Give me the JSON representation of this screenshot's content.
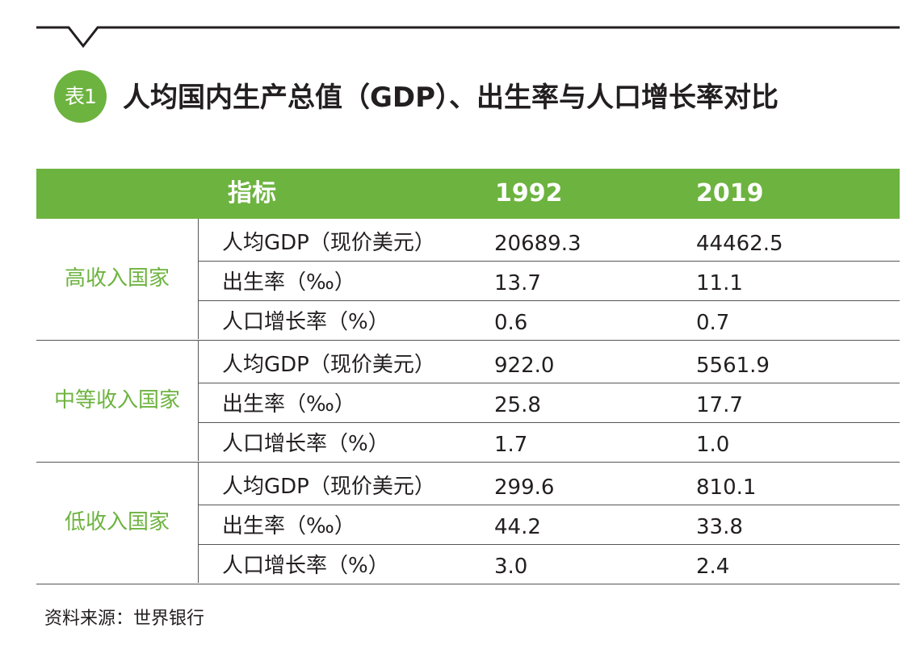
{
  "table_number": "表1",
  "title": "人均国内生产总值（GDP）、出生率与人口增长率对比",
  "header": {
    "indicator": "指标",
    "year1": "1992",
    "year2": "2019"
  },
  "groups": [
    {
      "name": "高收入国家",
      "rows": [
        {
          "indicator": "人均GDP（现价美元）",
          "y1992": "20689.3",
          "y2019": "44462.5"
        },
        {
          "indicator": "出生率（‰）",
          "y1992": "13.7",
          "y2019": "11.1"
        },
        {
          "indicator": "人口增长率（%）",
          "y1992": "0.6",
          "y2019": "0.7"
        }
      ]
    },
    {
      "name": "中等收入国家",
      "rows": [
        {
          "indicator": "人均GDP（现价美元）",
          "y1992": "922.0",
          "y2019": "5561.9"
        },
        {
          "indicator": "出生率（‰）",
          "y1992": "25.8",
          "y2019": "17.7"
        },
        {
          "indicator": "人口增长率（%）",
          "y1992": "1.7",
          "y2019": "1.0"
        }
      ]
    },
    {
      "name": "低收入国家",
      "rows": [
        {
          "indicator": "人均GDP（现价美元）",
          "y1992": "299.6",
          "y2019": "810.1"
        },
        {
          "indicator": "出生率（‰）",
          "y1992": "44.2",
          "y2019": "33.8"
        },
        {
          "indicator": "人口增长率（%）",
          "y1992": "3.0",
          "y2019": "2.4"
        }
      ]
    }
  ],
  "source": "资料来源：世界银行",
  "colors": {
    "accent": "#6db33f",
    "text": "#231f20",
    "rule": "#555555"
  }
}
